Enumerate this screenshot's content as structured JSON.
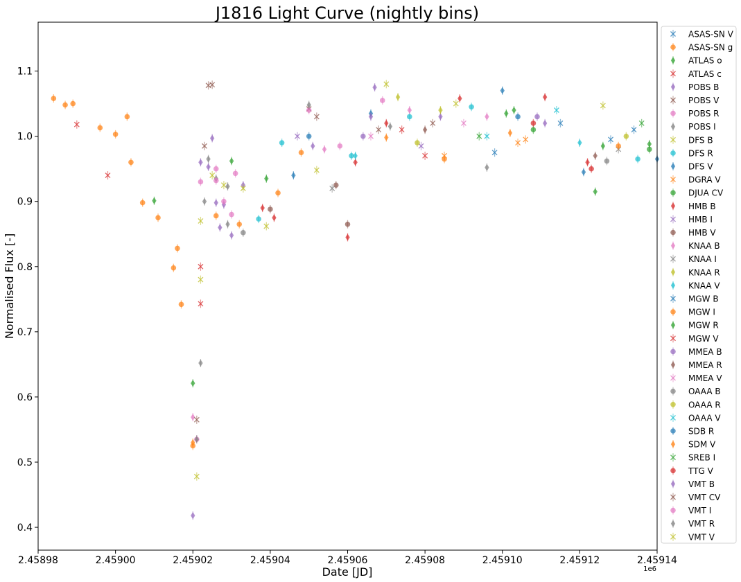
{
  "chart_data": {
    "type": "scatter",
    "title": "J1816 Light Curve (nightly bins)",
    "xlabel": "Date [JD]",
    "ylabel": "Normalised Flux [-]",
    "x_offset_label": "1e6",
    "xlim": [
      2458980,
      2459140
    ],
    "ylim": [
      0.365,
      1.175
    ],
    "x_ticks": [
      2458980,
      2459000,
      2459020,
      2459040,
      2459060,
      2459080,
      2459100,
      2459120,
      2459140
    ],
    "x_tick_labels": [
      "2.45898",
      "2.45900",
      "2.45902",
      "2.45904",
      "2.45906",
      "2.45908",
      "2.45910",
      "2.45912",
      "2.45914"
    ],
    "y_ticks": [
      0.4,
      0.5,
      0.6,
      0.7,
      0.8,
      0.9,
      1.0,
      1.1
    ],
    "y_tick_labels": [
      "0.4",
      "0.5",
      "0.6",
      "0.7",
      "0.8",
      "0.9",
      "1.0",
      "1.1"
    ],
    "grid": false,
    "legend_position": "right-outside",
    "series": [
      {
        "name": "ASAS-SN V",
        "color": "#1f77b4",
        "marker": "x",
        "points": [
          [
            2459128,
            0.995
          ],
          [
            2459134,
            1.01
          ]
        ]
      },
      {
        "name": "ASAS-SN g",
        "color": "#ff7f0e",
        "marker": "o",
        "points": [
          [
            2458984,
            1.058
          ],
          [
            2458987,
            1.048
          ],
          [
            2458989,
            1.05
          ],
          [
            2458996,
            1.013
          ],
          [
            2459000,
            1.003
          ],
          [
            2459003,
            1.03
          ],
          [
            2459004,
            0.96
          ],
          [
            2459007,
            0.898
          ],
          [
            2459011,
            0.875
          ],
          [
            2459015,
            0.798
          ],
          [
            2459016,
            0.828
          ],
          [
            2459017,
            0.742
          ],
          [
            2459020,
            0.525
          ],
          [
            2459026,
            0.878
          ],
          [
            2459032,
            0.865
          ],
          [
            2459048,
            0.975
          ]
        ]
      },
      {
        "name": "ATLAS o",
        "color": "#2ca02c",
        "marker": "d",
        "points": [
          [
            2459010,
            0.901
          ],
          [
            2459020,
            0.621
          ],
          [
            2459030,
            0.962
          ],
          [
            2459039,
            0.935
          ],
          [
            2459101,
            1.035
          ],
          [
            2459124,
            0.915
          ],
          [
            2459138,
            0.988
          ]
        ]
      },
      {
        "name": "ATLAS c",
        "color": "#d62728",
        "marker": "x",
        "points": [
          [
            2458990,
            1.018
          ],
          [
            2458998,
            0.94
          ],
          [
            2459022,
            0.743
          ],
          [
            2459080,
            0.97
          ]
        ]
      },
      {
        "name": "POBS B",
        "color": "#9467bd",
        "marker": "d",
        "points": [
          [
            2459022,
            0.96
          ],
          [
            2459024,
            0.953
          ],
          [
            2459025,
            0.997
          ],
          [
            2459026,
            0.898
          ],
          [
            2459028,
            0.895
          ],
          [
            2459030,
            0.848
          ],
          [
            2459033,
            0.925
          ],
          [
            2459051,
            0.985
          ],
          [
            2459067,
            1.075
          ],
          [
            2459084,
            1.03
          ],
          [
            2459111,
            1.02
          ]
        ]
      },
      {
        "name": "POBS V",
        "color": "#8c564b",
        "marker": "x",
        "points": [
          [
            2459023,
            0.985
          ],
          [
            2459024,
            1.078
          ],
          [
            2459025,
            1.079
          ],
          [
            2459050,
            1.042
          ],
          [
            2459068,
            1.01
          ]
        ]
      },
      {
        "name": "POBS R",
        "color": "#e377c2",
        "marker": "o",
        "points": [
          [
            2459022,
            0.93
          ],
          [
            2459026,
            0.95
          ],
          [
            2459028,
            0.9
          ],
          [
            2459030,
            0.88
          ],
          [
            2459031,
            0.943
          ],
          [
            2459050,
            1.04
          ],
          [
            2459069,
            1.055
          ]
        ]
      },
      {
        "name": "POBS I",
        "color": "#7f7f7f",
        "marker": "d",
        "points": [
          [
            2459022,
            0.652
          ],
          [
            2459023,
            0.9
          ],
          [
            2459024,
            0.965
          ],
          [
            2459026,
            0.935
          ],
          [
            2459029,
            0.865
          ],
          [
            2459050,
            1.048
          ],
          [
            2459096,
            0.952
          ]
        ]
      },
      {
        "name": "DFS B",
        "color": "#bcbd22",
        "marker": "x",
        "points": [
          [
            2459022,
            0.87
          ],
          [
            2459025,
            0.94
          ],
          [
            2459028,
            0.925
          ],
          [
            2459039,
            0.862
          ],
          [
            2459052,
            0.948
          ],
          [
            2459070,
            1.08
          ],
          [
            2459126,
            1.047
          ]
        ]
      },
      {
        "name": "DFS R",
        "color": "#17becf",
        "marker": "o",
        "points": [
          [
            2459037,
            0.873
          ],
          [
            2459043,
            0.99
          ],
          [
            2459061,
            0.97
          ],
          [
            2459076,
            1.03
          ],
          [
            2459092,
            1.045
          ],
          [
            2459135,
            0.965
          ]
        ]
      },
      {
        "name": "DFS V",
        "color": "#1f77b4",
        "marker": "d",
        "points": [
          [
            2459046,
            0.94
          ],
          [
            2459066,
            1.035
          ],
          [
            2459100,
            1.07
          ],
          [
            2459121,
            0.945
          ],
          [
            2459140,
            0.965
          ]
        ]
      },
      {
        "name": "DGRA V",
        "color": "#ff7f0e",
        "marker": "x",
        "points": [
          [
            2459085,
            0.97
          ],
          [
            2459104,
            0.99
          ],
          [
            2459106,
            0.995
          ]
        ]
      },
      {
        "name": "DJUA CV",
        "color": "#2ca02c",
        "marker": "o",
        "points": [
          [
            2459108,
            1.01
          ],
          [
            2459138,
            0.98
          ]
        ]
      },
      {
        "name": "HMB B",
        "color": "#d62728",
        "marker": "d",
        "points": [
          [
            2459038,
            0.89
          ],
          [
            2459041,
            0.875
          ],
          [
            2459060,
            0.845
          ],
          [
            2459062,
            0.96
          ],
          [
            2459070,
            1.02
          ],
          [
            2459089,
            1.058
          ],
          [
            2459111,
            1.06
          ],
          [
            2459122,
            0.96
          ]
        ]
      },
      {
        "name": "HMB I",
        "color": "#9467bd",
        "marker": "x",
        "points": [
          [
            2459047,
            1.0
          ],
          [
            2459079,
            0.985
          ]
        ]
      },
      {
        "name": "HMB V",
        "color": "#8c564b",
        "marker": "o",
        "points": [
          [
            2459040,
            0.888
          ],
          [
            2459057,
            0.925
          ],
          [
            2459060,
            0.865
          ]
        ]
      },
      {
        "name": "KNAA B",
        "color": "#e377c2",
        "marker": "d",
        "points": [
          [
            2459020,
            0.569
          ],
          [
            2459054,
            0.98
          ],
          [
            2459076,
            1.04
          ],
          [
            2459096,
            1.03
          ]
        ]
      },
      {
        "name": "KNAA I",
        "color": "#7f7f7f",
        "marker": "x",
        "points": [
          [
            2459056,
            0.92
          ],
          [
            2459130,
            0.98
          ]
        ]
      },
      {
        "name": "KNAA R",
        "color": "#bcbd22",
        "marker": "d",
        "points": [
          [
            2459073,
            1.06
          ],
          [
            2459084,
            1.04
          ]
        ]
      },
      {
        "name": "KNAA V",
        "color": "#17becf",
        "marker": "d",
        "points": [
          [
            2459062,
            0.97
          ],
          [
            2459120,
            0.99
          ]
        ]
      },
      {
        "name": "MGW B",
        "color": "#1f77b4",
        "marker": "x",
        "points": [
          [
            2459098,
            0.975
          ],
          [
            2459115,
            1.02
          ]
        ]
      },
      {
        "name": "MGW I",
        "color": "#ff7f0e",
        "marker": "o",
        "points": [
          [
            2459042,
            0.913
          ],
          [
            2459085,
            0.965
          ],
          [
            2459130,
            0.985
          ]
        ]
      },
      {
        "name": "MGW R",
        "color": "#2ca02c",
        "marker": "d",
        "points": [
          [
            2459103,
            1.04
          ],
          [
            2459126,
            0.985
          ]
        ]
      },
      {
        "name": "MGW V",
        "color": "#d62728",
        "marker": "x",
        "points": [
          [
            2459022,
            0.8
          ],
          [
            2459074,
            1.01
          ]
        ]
      },
      {
        "name": "MMEA B",
        "color": "#9467bd",
        "marker": "o",
        "points": [
          [
            2459064,
            1.0
          ],
          [
            2459109,
            1.03
          ]
        ]
      },
      {
        "name": "MMEA R",
        "color": "#8c564b",
        "marker": "d",
        "points": [
          [
            2459080,
            1.01
          ],
          [
            2459124,
            0.97
          ]
        ]
      },
      {
        "name": "MMEA V",
        "color": "#e377c2",
        "marker": "x",
        "points": [
          [
            2459066,
            1.0
          ],
          [
            2459090,
            1.02
          ]
        ]
      },
      {
        "name": "OAAA B",
        "color": "#7f7f7f",
        "marker": "o",
        "points": [
          [
            2459033,
            0.852
          ],
          [
            2459127,
            0.962
          ]
        ]
      },
      {
        "name": "OAAA R",
        "color": "#bcbd22",
        "marker": "o",
        "points": [
          [
            2459078,
            0.99
          ],
          [
            2459132,
            1.0
          ]
        ]
      },
      {
        "name": "OAAA V",
        "color": "#17becf",
        "marker": "x",
        "points": [
          [
            2459096,
            1.0
          ],
          [
            2459114,
            1.04
          ]
        ]
      },
      {
        "name": "SDB R",
        "color": "#1f77b4",
        "marker": "o",
        "points": [
          [
            2459050,
            1.0
          ],
          [
            2459104,
            1.03
          ]
        ]
      },
      {
        "name": "SDM V",
        "color": "#ff7f0e",
        "marker": "d",
        "points": [
          [
            2459020,
            0.53
          ],
          [
            2459070,
            0.998
          ],
          [
            2459102,
            1.005
          ]
        ]
      },
      {
        "name": "SREB I",
        "color": "#2ca02c",
        "marker": "x",
        "points": [
          [
            2459094,
            1.0
          ],
          [
            2459136,
            1.02
          ]
        ]
      },
      {
        "name": "TTG V",
        "color": "#d62728",
        "marker": "o",
        "points": [
          [
            2459108,
            1.02
          ],
          [
            2459123,
            0.95
          ]
        ]
      },
      {
        "name": "VMT B",
        "color": "#9467bd",
        "marker": "d",
        "points": [
          [
            2459020,
            0.418
          ],
          [
            2459027,
            0.86
          ],
          [
            2459066,
            1.03
          ]
        ]
      },
      {
        "name": "VMT CV",
        "color": "#8c564b",
        "marker": "x",
        "points": [
          [
            2459021,
            0.565
          ],
          [
            2459052,
            1.03
          ],
          [
            2459082,
            1.02
          ]
        ]
      },
      {
        "name": "VMT I",
        "color": "#e377c2",
        "marker": "o",
        "points": [
          [
            2459021,
            0.535
          ],
          [
            2459026,
            0.932
          ],
          [
            2459058,
            0.985
          ]
        ]
      },
      {
        "name": "VMT R",
        "color": "#7f7f7f",
        "marker": "d",
        "points": [
          [
            2459021,
            0.535
          ],
          [
            2459029,
            0.923
          ],
          [
            2459071,
            1.015
          ]
        ]
      },
      {
        "name": "VMT V",
        "color": "#bcbd22",
        "marker": "x",
        "points": [
          [
            2459021,
            0.478
          ],
          [
            2459022,
            0.78
          ],
          [
            2459033,
            0.92
          ],
          [
            2459088,
            1.05
          ]
        ]
      }
    ]
  }
}
